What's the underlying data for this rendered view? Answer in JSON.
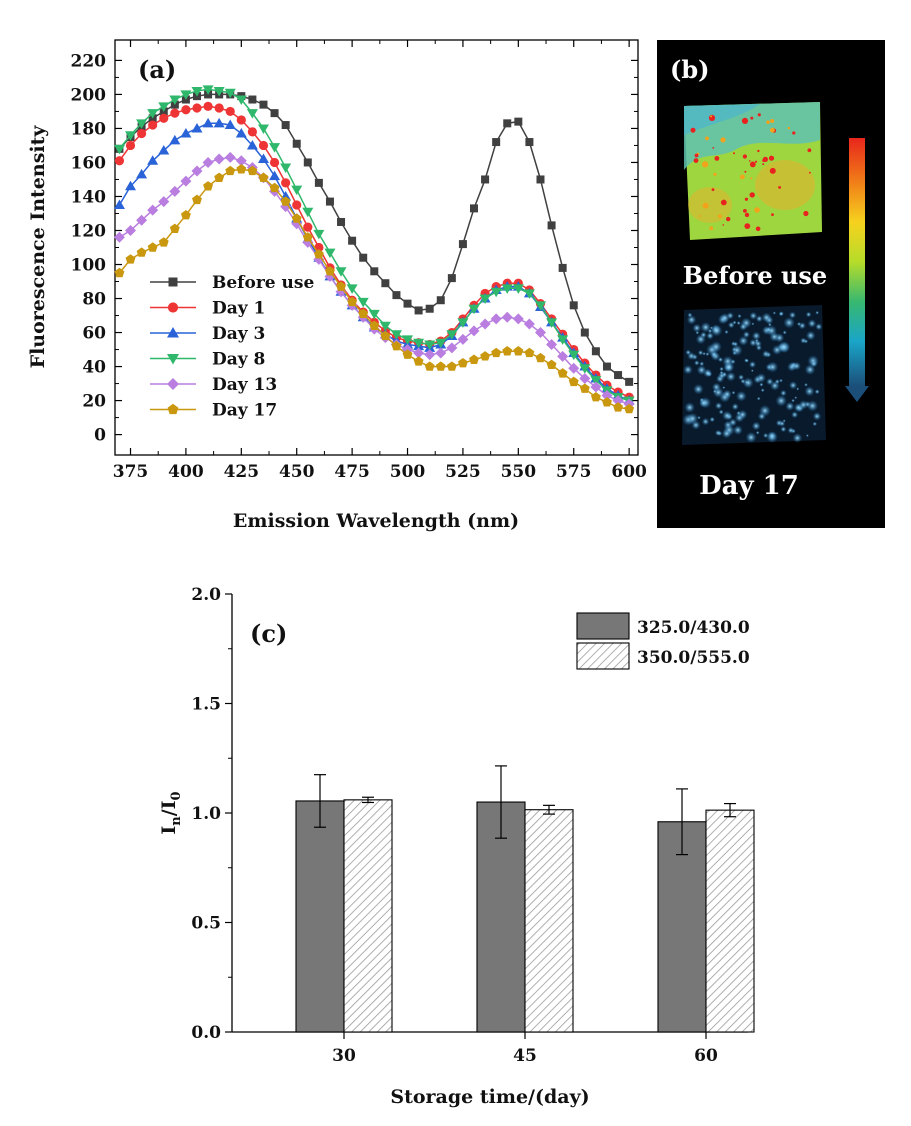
{
  "panel_b": {
    "label": "(b)",
    "top_caption": "Before use",
    "bottom_caption": "Day 17",
    "colorbar_colors": [
      "#e8261c",
      "#f07a18",
      "#f6d21e",
      "#b6dc2a",
      "#38b870",
      "#1aa5c8",
      "#1b4f7a"
    ]
  },
  "chart_data": [
    {
      "id": "a",
      "type": "line",
      "panel_label": "(a)",
      "xlabel": "Emission Wavelength (nm)",
      "ylabel": "Fluorescence Intensity",
      "xlim": [
        368,
        604
      ],
      "ylim": [
        -12,
        232
      ],
      "xticks": [
        375,
        400,
        425,
        450,
        475,
        500,
        525,
        550,
        575,
        600
      ],
      "yticks": [
        0,
        20,
        40,
        60,
        80,
        100,
        120,
        140,
        160,
        180,
        200,
        220
      ],
      "grid": false,
      "legend_position": "bottom-left",
      "x": [
        370,
        375,
        380,
        385,
        390,
        395,
        400,
        405,
        410,
        415,
        420,
        425,
        430,
        435,
        440,
        445,
        450,
        455,
        460,
        465,
        470,
        475,
        480,
        485,
        490,
        495,
        500,
        505,
        510,
        515,
        520,
        525,
        530,
        535,
        540,
        545,
        550,
        555,
        560,
        565,
        570,
        575,
        580,
        585,
        590,
        595,
        600
      ],
      "series": [
        {
          "name": "Before use",
          "color": "#404040",
          "marker": "square",
          "values": [
            168,
            175,
            181,
            186,
            190,
            194,
            197,
            199,
            200,
            200,
            200,
            199,
            197,
            194,
            189,
            182,
            171,
            160,
            148,
            137,
            125,
            114,
            104,
            96,
            89,
            82,
            77,
            73,
            74,
            79,
            92,
            112,
            133,
            150,
            172,
            183,
            184,
            172,
            150,
            123,
            98,
            76,
            60,
            49,
            40,
            35,
            31
          ]
        },
        {
          "name": "Day 1",
          "color": "#ee3434",
          "marker": "circle",
          "values": [
            161,
            170,
            177,
            182,
            186,
            189,
            191,
            192,
            193,
            192,
            190,
            185,
            178,
            170,
            160,
            148,
            135,
            122,
            110,
            98,
            88,
            79,
            72,
            66,
            61,
            57,
            55,
            54,
            53,
            55,
            60,
            68,
            76,
            83,
            87,
            89,
            89,
            85,
            77,
            68,
            59,
            50,
            42,
            35,
            29,
            25,
            22
          ]
        },
        {
          "name": "Day 3",
          "color": "#2a63d8",
          "marker": "triangle-up",
          "values": [
            135,
            146,
            153,
            161,
            167,
            173,
            177,
            180,
            183,
            183,
            182,
            177,
            170,
            162,
            152,
            140,
            127,
            115,
            104,
            93,
            84,
            76,
            69,
            63,
            59,
            55,
            53,
            52,
            51,
            53,
            58,
            66,
            74,
            80,
            85,
            87,
            87,
            83,
            75,
            66,
            57,
            48,
            40,
            33,
            27,
            23,
            20
          ]
        },
        {
          "name": "Day 8",
          "color": "#2fb86b",
          "marker": "triangle-down",
          "values": [
            168,
            176,
            183,
            189,
            193,
            197,
            200,
            202,
            203,
            202,
            201,
            197,
            189,
            180,
            169,
            157,
            144,
            131,
            118,
            107,
            96,
            86,
            78,
            71,
            64,
            59,
            56,
            54,
            53,
            54,
            59,
            66,
            74,
            80,
            84,
            86,
            86,
            83,
            76,
            66,
            56,
            47,
            39,
            32,
            26,
            22,
            20
          ]
        },
        {
          "name": "Day 13",
          "color": "#b97ee0",
          "marker": "diamond",
          "values": [
            116,
            120,
            126,
            132,
            137,
            143,
            149,
            155,
            160,
            162,
            163,
            161,
            157,
            151,
            143,
            134,
            124,
            113,
            103,
            93,
            84,
            76,
            69,
            62,
            57,
            53,
            50,
            48,
            47,
            48,
            51,
            56,
            61,
            65,
            68,
            69,
            68,
            65,
            60,
            53,
            46,
            39,
            33,
            28,
            23,
            20,
            18
          ]
        },
        {
          "name": "Day 17",
          "color": "#c9980f",
          "marker": "pentagon",
          "values": [
            95,
            103,
            107,
            110,
            113,
            121,
            129,
            138,
            146,
            151,
            155,
            156,
            155,
            151,
            145,
            137,
            127,
            116,
            106,
            96,
            87,
            78,
            71,
            64,
            58,
            52,
            47,
            43,
            40,
            40,
            40,
            42,
            44,
            46,
            48,
            49,
            49,
            48,
            45,
            41,
            36,
            31,
            27,
            22,
            19,
            16,
            15
          ]
        }
      ]
    },
    {
      "id": "c",
      "type": "bar",
      "panel_label": "(c)",
      "xlabel": "Storage time/(day)",
      "ylabel_main": "I",
      "ylabel_sub1": "n",
      "ylabel_mid": "/I",
      "ylabel_sub2": "0",
      "ylim": [
        0,
        2
      ],
      "yticks": [
        "0.0",
        "0.5",
        "1.0",
        "1.5",
        "2.0"
      ],
      "categories": [
        "30",
        "45",
        "60"
      ],
      "grid": false,
      "legend_position": "top-right",
      "series": [
        {
          "name": "325.0/430.0",
          "fill": "#777777",
          "pattern": "solid",
          "values": [
            1.055,
            1.05,
            0.96
          ],
          "errors": [
            0.12,
            0.165,
            0.15
          ]
        },
        {
          "name": "350.0/555.0",
          "fill": "#ffffff",
          "pattern": "hatched",
          "values": [
            1.06,
            1.015,
            1.013
          ],
          "errors": [
            0.012,
            0.02,
            0.03
          ]
        }
      ]
    }
  ]
}
